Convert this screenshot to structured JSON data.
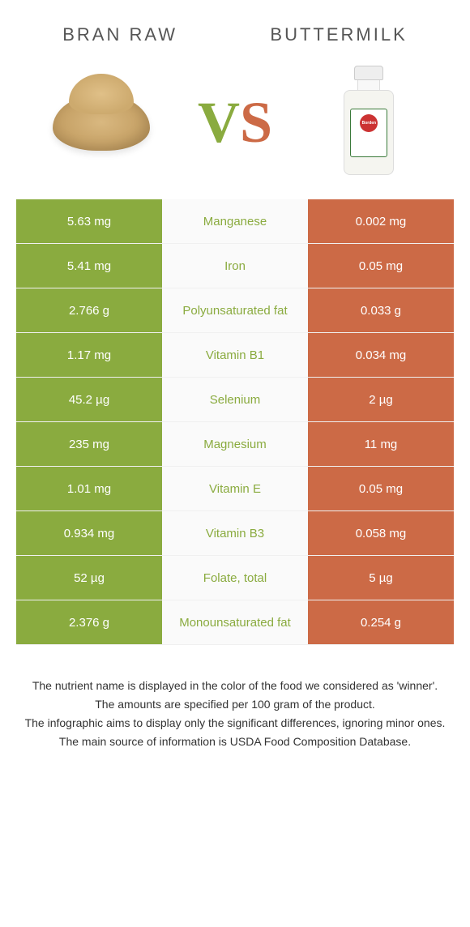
{
  "colors": {
    "green": "#8aab3f",
    "orange": "#cc6a46",
    "mid_bg": "#fafafa",
    "white": "#ffffff",
    "text": "#333333"
  },
  "header": {
    "left_title": "Bran raw",
    "right_title": "Buttermilk",
    "vs_v": "V",
    "vs_s": "S",
    "bottle_brand": "Borden"
  },
  "rows": [
    {
      "left": "5.63 mg",
      "label": "Manganese",
      "right": "0.002 mg",
      "winner": "left"
    },
    {
      "left": "5.41 mg",
      "label": "Iron",
      "right": "0.05 mg",
      "winner": "left"
    },
    {
      "left": "2.766 g",
      "label": "Polyunsaturated fat",
      "right": "0.033 g",
      "winner": "left"
    },
    {
      "left": "1.17 mg",
      "label": "Vitamin B1",
      "right": "0.034 mg",
      "winner": "left"
    },
    {
      "left": "45.2 µg",
      "label": "Selenium",
      "right": "2 µg",
      "winner": "left"
    },
    {
      "left": "235 mg",
      "label": "Magnesium",
      "right": "11 mg",
      "winner": "left"
    },
    {
      "left": "1.01 mg",
      "label": "Vitamin E",
      "right": "0.05 mg",
      "winner": "left"
    },
    {
      "left": "0.934 mg",
      "label": "Vitamin B3",
      "right": "0.058 mg",
      "winner": "left"
    },
    {
      "left": "52 µg",
      "label": "Folate, total",
      "right": "5 µg",
      "winner": "left"
    },
    {
      "left": "2.376 g",
      "label": "Monounsaturated fat",
      "right": "0.254 g",
      "winner": "left"
    }
  ],
  "footer": {
    "line1": "The nutrient name is displayed in the color of the food we considered as 'winner'.",
    "line2": "The amounts are specified per 100 gram of the product.",
    "line3": "The infographic aims to display only the significant differences, ignoring minor ones.",
    "line4": "The main source of information is USDA Food Composition Database."
  }
}
